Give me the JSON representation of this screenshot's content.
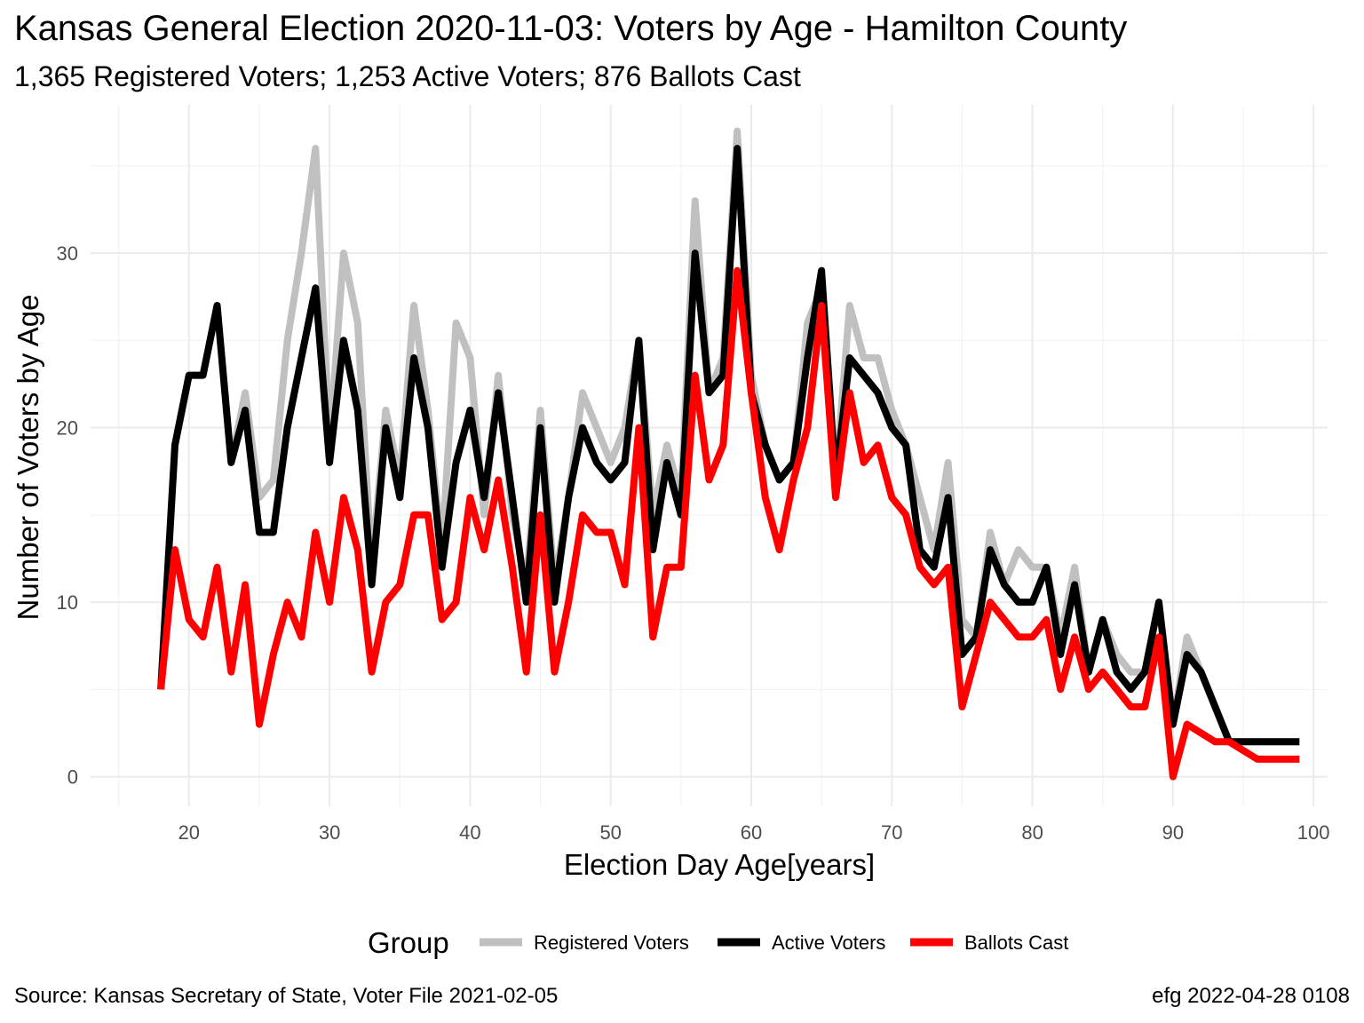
{
  "header": {
    "title": "Kansas General Election 2020-11-03:  Voters by Age - Hamilton County",
    "subtitle": "1,365 Registered Voters; 1,253 Active Voters; 876 Ballots Cast"
  },
  "footer": {
    "source": "Source:  Kansas Secretary of State, Voter File  2021-02-05",
    "credit": "efg 2022-04-28 0108"
  },
  "chart_data": {
    "type": "line",
    "title": "Kansas General Election 2020-11-03:  Voters by Age - Hamilton County",
    "subtitle": "1,365 Registered Voters; 1,253 Active Voters; 876 Ballots Cast",
    "xlabel": "Election Day Age[years]",
    "ylabel": "Number of Voters by Age",
    "xlim": [
      13,
      101
    ],
    "ylim": [
      -1.7,
      38.5
    ],
    "x_ticks": [
      20,
      30,
      40,
      50,
      60,
      70,
      80,
      90,
      100
    ],
    "y_ticks": [
      0,
      10,
      20,
      30
    ],
    "grid": true,
    "legend": {
      "title": "Group",
      "position": "bottom"
    },
    "x": [
      18,
      19,
      20,
      21,
      22,
      23,
      24,
      25,
      26,
      27,
      28,
      29,
      30,
      31,
      32,
      33,
      34,
      35,
      36,
      37,
      38,
      39,
      40,
      41,
      42,
      43,
      44,
      45,
      46,
      47,
      48,
      49,
      50,
      51,
      52,
      53,
      54,
      55,
      56,
      57,
      58,
      59,
      60,
      61,
      62,
      63,
      64,
      65,
      66,
      67,
      68,
      69,
      70,
      71,
      72,
      73,
      74,
      75,
      76,
      77,
      78,
      79,
      80,
      81,
      82,
      83,
      84,
      85,
      86,
      87,
      88,
      89,
      90,
      91,
      92,
      93,
      94,
      95,
      96,
      97,
      98,
      99
    ],
    "series": [
      {
        "name": "Registered Voters",
        "color": "#c0c0c0",
        "values": [
          5,
          19,
          23,
          23,
          27,
          18,
          22,
          16,
          17,
          25,
          30,
          36,
          19,
          30,
          26,
          12,
          21,
          17,
          27,
          21,
          13,
          26,
          24,
          15,
          23,
          15,
          11,
          21,
          11,
          16,
          22,
          20,
          18,
          20,
          25,
          15,
          19,
          16,
          33,
          22,
          24,
          37,
          23,
          19,
          17,
          18,
          26,
          28,
          17,
          27,
          24,
          24,
          21,
          19,
          16,
          13,
          18,
          9,
          8,
          14,
          11,
          13,
          12,
          12,
          8,
          12,
          6,
          9,
          7,
          6,
          6,
          10,
          3,
          8,
          6,
          4,
          2,
          2,
          2,
          2,
          2,
          2
        ]
      },
      {
        "name": "Active Voters",
        "color": "#000000",
        "values": [
          5,
          19,
          23,
          23,
          27,
          18,
          21,
          14,
          14,
          20,
          24,
          28,
          18,
          25,
          21,
          11,
          20,
          16,
          24,
          20,
          12,
          18,
          21,
          16,
          22,
          16,
          10,
          20,
          10,
          16,
          20,
          18,
          17,
          18,
          25,
          13,
          18,
          15,
          30,
          22,
          23,
          36,
          22,
          19,
          17,
          18,
          24,
          29,
          17,
          24,
          23,
          22,
          20,
          19,
          13,
          12,
          16,
          7,
          8,
          13,
          11,
          10,
          10,
          12,
          7,
          11,
          6,
          9,
          6,
          5,
          6,
          10,
          3,
          7,
          6,
          4,
          2,
          2,
          2,
          2,
          2,
          2
        ]
      },
      {
        "name": "Ballots Cast",
        "color": "#ff0000",
        "values": [
          5,
          13,
          9,
          8,
          12,
          6,
          11,
          3,
          7,
          10,
          8,
          14,
          10,
          16,
          13,
          6,
          10,
          11,
          15,
          15,
          9,
          10,
          16,
          13,
          17,
          12,
          6,
          15,
          6,
          10,
          15,
          14,
          14,
          11,
          20,
          8,
          12,
          12,
          23,
          17,
          19,
          29,
          22,
          16,
          13,
          17,
          20,
          27,
          16,
          22,
          18,
          19,
          16,
          15,
          12,
          11,
          12,
          4,
          7,
          10,
          9,
          8,
          8,
          9,
          5,
          8,
          5,
          6,
          5,
          4,
          4,
          8,
          0,
          3,
          2.5,
          2,
          2,
          1.5,
          1,
          1,
          1,
          1
        ]
      }
    ]
  }
}
